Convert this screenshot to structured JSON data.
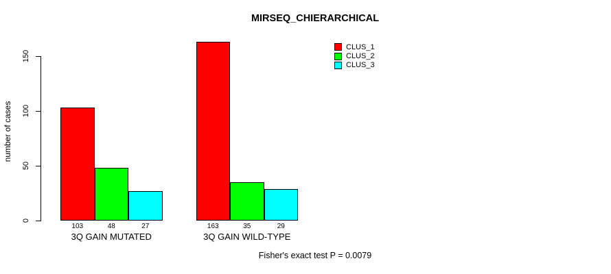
{
  "title": "MIRSEQ_CHIERARCHICAL",
  "footer": "Fisher's exact test P = 0.0079",
  "chart_data": {
    "type": "bar",
    "title": "MIRSEQ_CHIERARCHICAL",
    "xlabel": "",
    "ylabel": "number of cases",
    "categories": [
      "3Q GAIN MUTATED",
      "3Q GAIN WILD-TYPE"
    ],
    "series": [
      {
        "name": "CLUS_1",
        "color": "#ff0000",
        "values": [
          103,
          163
        ]
      },
      {
        "name": "CLUS_2",
        "color": "#00ff00",
        "values": [
          48,
          35
        ]
      },
      {
        "name": "CLUS_3",
        "color": "#00ffff",
        "values": [
          27,
          29
        ]
      }
    ],
    "bar_value_labels": [
      [
        103,
        48,
        27
      ],
      [
        163,
        35,
        29
      ]
    ],
    "yticks": [
      0,
      50,
      100,
      150
    ],
    "ylim": [
      0,
      163
    ],
    "grid": false,
    "legend_position": "top-right",
    "legend_border": false,
    "annotation": "Fisher's exact test P = 0.0079",
    "bar_border_color": "#000000",
    "background_color": "#ffffff"
  }
}
